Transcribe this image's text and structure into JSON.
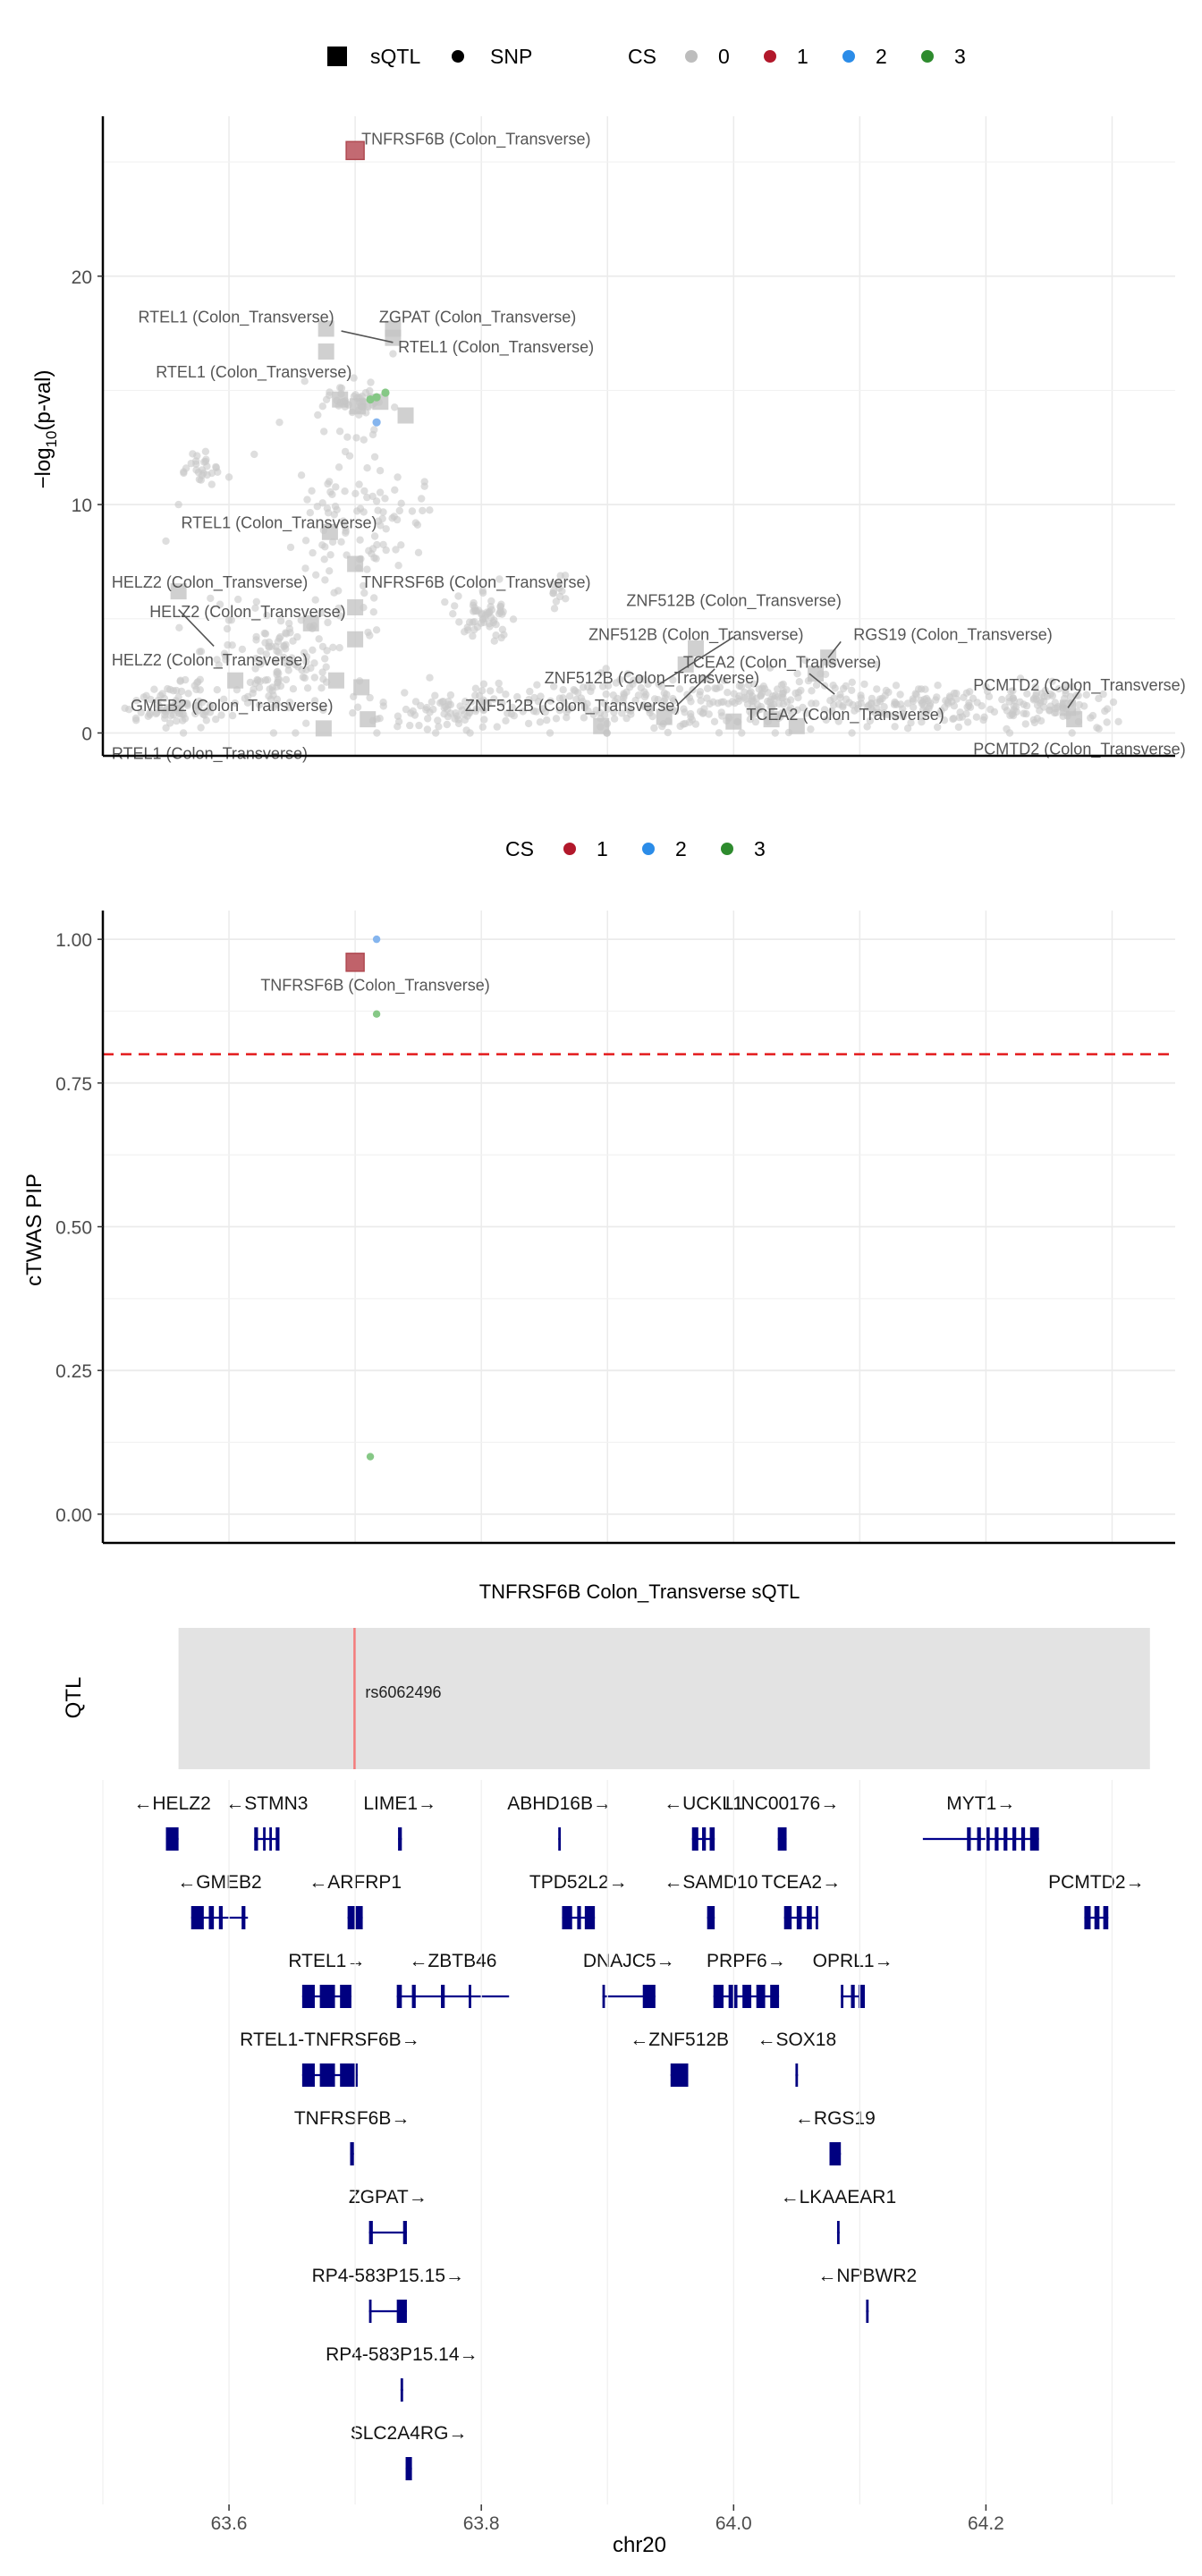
{
  "legend_top": {
    "shape_items": [
      {
        "label": "sQTL",
        "symbol": "square"
      },
      {
        "label": "SNP",
        "symbol": "circle"
      }
    ],
    "cs_title": "CS",
    "cs_items": [
      {
        "label": "0",
        "color": "#bdbdbd"
      },
      {
        "label": "1",
        "color": "#b2182b"
      },
      {
        "label": "2",
        "color": "#2b8ce8"
      },
      {
        "label": "3",
        "color": "#2e8b2e"
      }
    ]
  },
  "legend_mid": {
    "cs_title": "CS",
    "cs_items": [
      {
        "label": "1",
        "color": "#b2182b"
      },
      {
        "label": "2",
        "color": "#2b8ce8"
      },
      {
        "label": "3",
        "color": "#2e8b2e"
      }
    ]
  },
  "chart_data": [
    {
      "type": "scatter",
      "panel": "association",
      "ylabel": "−log10(p-val)",
      "xlim": [
        63.5,
        64.35
      ],
      "ylim": [
        -1,
        27
      ],
      "y_ticks": [
        0,
        10,
        20
      ],
      "grid": true,
      "sqtl_points": [
        {
          "x": 63.7,
          "y": 25.5,
          "cs": 1,
          "label": "TNFRSF6B (Colon_Transverse)"
        },
        {
          "x": 63.677,
          "y": 17.7,
          "cs": 0,
          "label": "RTEL1 (Colon_Transverse)"
        },
        {
          "x": 63.677,
          "y": 16.7,
          "cs": 0,
          "label": "RTEL1 (Colon_Transverse)"
        },
        {
          "x": 63.73,
          "y": 17.7,
          "cs": 0,
          "label": "ZGPAT (Colon_Transverse)"
        },
        {
          "x": 63.73,
          "y": 17.3,
          "cs": 0,
          "label": "RTEL1 (Colon_Transverse)"
        },
        {
          "x": 63.688,
          "y": 14.6,
          "cs": 0,
          "label": ""
        },
        {
          "x": 63.702,
          "y": 14.3,
          "cs": 0,
          "label": ""
        },
        {
          "x": 63.72,
          "y": 14.5,
          "cs": 0,
          "label": ""
        },
        {
          "x": 63.74,
          "y": 13.9,
          "cs": 0,
          "label": ""
        },
        {
          "x": 63.68,
          "y": 8.8,
          "cs": 0,
          "label": "RTEL1 (Colon_Transverse)"
        },
        {
          "x": 63.7,
          "y": 7.4,
          "cs": 0,
          "label": "TNFRSF6B (Colon_Transverse)"
        },
        {
          "x": 63.56,
          "y": 6.2,
          "cs": 0,
          "label": "HELZ2 (Colon_Transverse)"
        },
        {
          "x": 63.7,
          "y": 5.5,
          "cs": 0,
          "label": "HELZ2 (Colon_Transverse)"
        },
        {
          "x": 63.665,
          "y": 4.8,
          "cs": 0,
          "label": ""
        },
        {
          "x": 63.7,
          "y": 4.1,
          "cs": 0,
          "label": ""
        },
        {
          "x": 63.605,
          "y": 2.3,
          "cs": 0,
          "label": "HELZ2 (Colon_Transverse)"
        },
        {
          "x": 63.685,
          "y": 2.3,
          "cs": 0,
          "label": "GMEB2 (Colon_Transverse)"
        },
        {
          "x": 63.705,
          "y": 2.0,
          "cs": 0,
          "label": ""
        },
        {
          "x": 63.71,
          "y": 0.6,
          "cs": 0,
          "label": ""
        },
        {
          "x": 63.675,
          "y": 0.2,
          "cs": 0,
          "label": "RTEL1 (Colon_Transverse)"
        },
        {
          "x": 63.895,
          "y": 0.3,
          "cs": 0,
          "label": "ZNF512B (Colon_Transverse)"
        },
        {
          "x": 63.945,
          "y": 0.7,
          "cs": 0,
          "label": "ZNF512B (Colon_Transverse)"
        },
        {
          "x": 63.97,
          "y": 3.7,
          "cs": 0,
          "label": "ZNF512B (Colon_Transverse)"
        },
        {
          "x": 63.962,
          "y": 3.0,
          "cs": 0,
          "label": "ZNF512B (Colon_Transverse)"
        },
        {
          "x": 64.0,
          "y": 0.5,
          "cs": 0,
          "label": ""
        },
        {
          "x": 64.03,
          "y": 0.6,
          "cs": 0,
          "label": "TCEA2 (Colon_Transverse)"
        },
        {
          "x": 64.065,
          "y": 2.6,
          "cs": 0,
          "label": "TCEA2 (Colon_Transverse)"
        },
        {
          "x": 64.075,
          "y": 3.3,
          "cs": 0,
          "label": "RGS19 (Colon_Transverse)"
        },
        {
          "x": 64.05,
          "y": 0.3,
          "cs": 0,
          "label": ""
        },
        {
          "x": 64.265,
          "y": 1.1,
          "cs": 0,
          "label": "PCMTD2 (Colon_Transverse)"
        },
        {
          "x": 64.27,
          "y": 0.6,
          "cs": 0,
          "label": "PCMTD2 (Colon_Transverse)"
        }
      ],
      "cs_snps": [
        {
          "x": 63.717,
          "y": 13.6,
          "cs": 2
        },
        {
          "x": 63.712,
          "y": 14.6,
          "cs": 3
        },
        {
          "x": 63.717,
          "y": 14.7,
          "cs": 3
        },
        {
          "x": 63.724,
          "y": 14.9,
          "cs": 3
        }
      ],
      "labels": [
        {
          "text": "TNFRSF6B (Colon_Transverse)",
          "x": 63.705,
          "y": 26.0,
          "anchor": "start"
        },
        {
          "text": "RTEL1 (Colon_Transverse)",
          "x": 63.528,
          "y": 18.2,
          "anchor": "start"
        },
        {
          "text": "ZGPAT (Colon_Transverse)",
          "x": 63.719,
          "y": 18.2,
          "anchor": "start"
        },
        {
          "text": "RTEL1 (Colon_Transverse)",
          "x": 63.734,
          "y": 16.9,
          "anchor": "start"
        },
        {
          "text": "RTEL1 (Colon_Transverse)",
          "x": 63.542,
          "y": 15.8,
          "anchor": "start"
        },
        {
          "text": "RTEL1 (Colon_Transverse)",
          "x": 63.562,
          "y": 9.2,
          "anchor": "start"
        },
        {
          "text": "HELZ2 (Colon_Transverse)",
          "x": 63.507,
          "y": 6.6,
          "anchor": "start"
        },
        {
          "text": "TNFRSF6B (Colon_Transverse)",
          "x": 63.705,
          "y": 6.6,
          "anchor": "start"
        },
        {
          "text": "HELZ2 (Colon_Transverse)",
          "x": 63.537,
          "y": 5.3,
          "anchor": "start"
        },
        {
          "text": "HELZ2 (Colon_Transverse)",
          "x": 63.507,
          "y": 3.2,
          "anchor": "start"
        },
        {
          "text": "GMEB2 (Colon_Transverse)",
          "x": 63.522,
          "y": 1.2,
          "anchor": "start"
        },
        {
          "text": "RTEL1 (Colon_Transverse)",
          "x": 63.507,
          "y": -0.9,
          "anchor": "start"
        },
        {
          "text": "ZNF512B (Colon_Transverse)",
          "x": 63.915,
          "y": 5.8,
          "anchor": "start"
        },
        {
          "text": "ZNF512B (Colon_Transverse)",
          "x": 63.885,
          "y": 4.3,
          "anchor": "start"
        },
        {
          "text": "RGS19 (Colon_Transverse)",
          "x": 64.095,
          "y": 4.3,
          "anchor": "start"
        },
        {
          "text": "TCEA2 (Colon_Transverse)",
          "x": 63.96,
          "y": 3.1,
          "anchor": "start"
        },
        {
          "text": "ZNF512B (Colon_Transverse)",
          "x": 63.85,
          "y": 2.4,
          "anchor": "start"
        },
        {
          "text": "PCMTD2 (Colon_Transverse)",
          "x": 64.19,
          "y": 2.1,
          "anchor": "start"
        },
        {
          "text": "ZNF512B (Colon_Transverse)",
          "x": 63.787,
          "y": 1.2,
          "anchor": "start"
        },
        {
          "text": "TCEA2 (Colon_Transverse)",
          "x": 64.01,
          "y": 0.8,
          "anchor": "start"
        },
        {
          "text": "PCMTD2 (Colon_Transverse)",
          "x": 64.19,
          "y": -0.7,
          "anchor": "start"
        }
      ]
    },
    {
      "type": "scatter",
      "panel": "pip",
      "ylabel": "cTWAS PIP",
      "xlim": [
        63.5,
        64.35
      ],
      "ylim": [
        -0.05,
        1.05
      ],
      "y_ticks": [
        0.0,
        0.25,
        0.5,
        0.75,
        1.0
      ],
      "threshold": 0.8,
      "grid": true,
      "sqtl_points": [
        {
          "x": 63.7,
          "y": 0.96,
          "cs": 1,
          "label": "TNFRSF6B (Colon_Transverse)"
        }
      ],
      "cs_snps": [
        {
          "x": 63.717,
          "y": 1.0,
          "cs": 2
        },
        {
          "x": 63.717,
          "y": 0.87,
          "cs": 3
        },
        {
          "x": 63.712,
          "y": 0.1,
          "cs": 3
        }
      ],
      "labels": [
        {
          "text": "TNFRSF6B (Colon_Transverse)",
          "x": 63.625,
          "y": 0.92,
          "anchor": "start"
        }
      ]
    }
  ],
  "qtl_track": {
    "title": "TNFRSF6B Colon_Transverse sQTL",
    "ylabel": "QTL",
    "range": [
      63.56,
      64.33
    ],
    "snp_x": 63.6995,
    "snp_label": "rs6062496"
  },
  "genes": [
    {
      "label": "←HELZ2",
      "row": 0,
      "start": 63.55,
      "end": 63.56,
      "blocks": [
        [
          63.55,
          63.56
        ]
      ]
    },
    {
      "label": "←STMN3",
      "row": 0,
      "start": 63.62,
      "end": 63.64,
      "blocks": [
        [
          63.62,
          63.623
        ],
        [
          63.627,
          63.629
        ],
        [
          63.632,
          63.634
        ],
        [
          63.637,
          63.64
        ]
      ]
    },
    {
      "label": "LIME1→",
      "row": 0,
      "start": 63.734,
      "end": 63.737,
      "blocks": [
        [
          63.734,
          63.737
        ]
      ]
    },
    {
      "label": "ABHD16B→",
      "row": 0,
      "start": 63.861,
      "end": 63.863,
      "blocks": [
        [
          63.861,
          63.863
        ]
      ]
    },
    {
      "label": "←UCKL1",
      "row": 0,
      "start": 63.967,
      "end": 63.985,
      "blocks": [
        [
          63.967,
          63.972
        ],
        [
          63.975,
          63.978
        ],
        [
          63.981,
          63.985
        ]
      ]
    },
    {
      "label": "LINC00176→",
      "row": 0,
      "start": 64.035,
      "end": 64.042,
      "blocks": [
        [
          64.035,
          64.042
        ]
      ]
    },
    {
      "label": "MYT1→",
      "row": 0,
      "start": 64.15,
      "end": 64.242,
      "blocks": [
        [
          64.185,
          64.188
        ],
        [
          64.193,
          64.196
        ],
        [
          64.2,
          64.203
        ],
        [
          64.207,
          64.21
        ],
        [
          64.214,
          64.217
        ],
        [
          64.221,
          64.224
        ],
        [
          64.228,
          64.231
        ],
        [
          64.235,
          64.242
        ]
      ]
    },
    {
      "label": "←GMEB2",
      "row": 1,
      "start": 63.57,
      "end": 63.615,
      "blocks": [
        [
          63.57,
          63.58
        ],
        [
          63.584,
          63.588
        ],
        [
          63.592,
          63.595
        ],
        [
          63.61,
          63.613
        ]
      ]
    },
    {
      "label": "←ARFRP1",
      "row": 1,
      "start": 63.694,
      "end": 63.706,
      "blocks": [
        [
          63.694,
          63.706
        ]
      ]
    },
    {
      "label": "TPD52L2→",
      "row": 1,
      "start": 63.864,
      "end": 63.89,
      "blocks": [
        [
          63.864,
          63.872
        ],
        [
          63.876,
          63.879
        ],
        [
          63.882,
          63.89
        ]
      ]
    },
    {
      "label": "←SAMD10",
      "row": 1,
      "start": 63.979,
      "end": 63.985,
      "blocks": [
        [
          63.979,
          63.985
        ]
      ]
    },
    {
      "label": "TCEA2→",
      "row": 1,
      "start": 64.04,
      "end": 64.067,
      "blocks": [
        [
          64.04,
          64.046
        ],
        [
          64.05,
          64.054
        ],
        [
          64.058,
          64.062
        ],
        [
          64.065,
          64.067
        ]
      ]
    },
    {
      "label": "PCMTD2→",
      "row": 1,
      "start": 64.278,
      "end": 64.297,
      "blocks": [
        [
          64.278,
          64.283
        ],
        [
          64.286,
          64.29
        ],
        [
          64.293,
          64.297
        ]
      ]
    },
    {
      "label": "RTEL1→",
      "row": 2,
      "start": 63.658,
      "end": 63.697,
      "blocks": [
        [
          63.658,
          63.668
        ],
        [
          63.672,
          63.684
        ],
        [
          63.688,
          63.697
        ]
      ]
    },
    {
      "label": "←ZBTB46",
      "row": 2,
      "start": 63.733,
      "end": 63.822,
      "blocks": [
        [
          63.733,
          63.737
        ],
        [
          63.745,
          63.748
        ],
        [
          63.768,
          63.771
        ],
        [
          63.79,
          63.792
        ]
      ]
    },
    {
      "label": "DNAJC5→",
      "row": 2,
      "start": 63.896,
      "end": 63.938,
      "blocks": [
        [
          63.896,
          63.898
        ],
        [
          63.928,
          63.938
        ]
      ]
    },
    {
      "label": "PRPF6→",
      "row": 2,
      "start": 63.984,
      "end": 64.036,
      "blocks": [
        [
          63.984,
          63.992
        ],
        [
          63.996,
          64.003
        ],
        [
          64.007,
          64.014
        ],
        [
          64.018,
          64.025
        ],
        [
          64.029,
          64.036
        ]
      ]
    },
    {
      "label": "OPRL1→",
      "row": 2,
      "start": 64.085,
      "end": 64.104,
      "blocks": [
        [
          64.085,
          64.087
        ],
        [
          64.093,
          64.096
        ],
        [
          64.099,
          64.104
        ]
      ]
    },
    {
      "label": "RTEL1-TNFRSF6B→",
      "row": 3,
      "start": 63.658,
      "end": 63.702,
      "blocks": [
        [
          63.658,
          63.668
        ],
        [
          63.672,
          63.684
        ],
        [
          63.688,
          63.702
        ]
      ]
    },
    {
      "label": "←ZNF512B",
      "row": 3,
      "start": 63.95,
      "end": 63.964,
      "blocks": [
        [
          63.95,
          63.964
        ]
      ]
    },
    {
      "label": "←SOX18",
      "row": 3,
      "start": 64.049,
      "end": 64.051,
      "blocks": [
        [
          64.049,
          64.051
        ]
      ]
    },
    {
      "label": "TNFRSF6B→",
      "row": 4,
      "start": 63.696,
      "end": 63.699,
      "blocks": [
        [
          63.696,
          63.699
        ]
      ]
    },
    {
      "label": "←RGS19",
      "row": 4,
      "start": 64.076,
      "end": 64.085,
      "blocks": [
        [
          64.076,
          64.085
        ]
      ]
    },
    {
      "label": "ZGPAT→",
      "row": 5,
      "start": 63.711,
      "end": 63.741,
      "blocks": [
        [
          63.711,
          63.714
        ],
        [
          63.738,
          63.741
        ]
      ]
    },
    {
      "label": "←LKAAEAR1",
      "row": 5,
      "start": 64.082,
      "end": 64.084,
      "blocks": [
        [
          64.082,
          64.084
        ]
      ]
    },
    {
      "label": "RP4-583P15.15→",
      "row": 6,
      "start": 63.711,
      "end": 63.741,
      "blocks": [
        [
          63.711,
          63.713
        ],
        [
          63.733,
          63.741
        ]
      ]
    },
    {
      "label": "←NPBWR2",
      "row": 6,
      "start": 64.105,
      "end": 64.107,
      "blocks": [
        [
          64.105,
          64.107
        ]
      ]
    },
    {
      "label": "RP4-583P15.14→",
      "row": 7,
      "start": 63.736,
      "end": 63.738,
      "blocks": [
        [
          63.736,
          63.738
        ]
      ]
    },
    {
      "label": "SLC2A4RG→",
      "row": 8,
      "start": 63.74,
      "end": 63.745,
      "blocks": [
        [
          63.74,
          63.745
        ]
      ]
    }
  ],
  "x_axis": {
    "label": "chr20",
    "ticks": [
      {
        "value": 63.6,
        "label": "63.6"
      },
      {
        "value": 63.8,
        "label": "63.8"
      },
      {
        "value": 64.0,
        "label": "64.0"
      },
      {
        "value": 64.2,
        "label": "64.2"
      }
    ]
  }
}
